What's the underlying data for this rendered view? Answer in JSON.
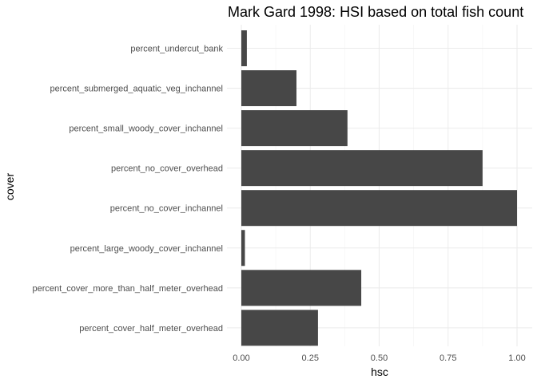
{
  "chart_data": {
    "type": "bar",
    "orientation": "horizontal",
    "title": "Mark Gard 1998: HSI based on total fish count",
    "xlabel": "hsc",
    "ylabel": "cover",
    "xlim": [
      0,
      1
    ],
    "x_ticks": [
      "0.00",
      "0.25",
      "0.50",
      "0.75",
      "1.00"
    ],
    "categories": [
      "percent_undercut_bank",
      "percent_submerged_aquatic_veg_inchannel",
      "percent_small_woody_cover_inchannel",
      "percent_no_cover_overhead",
      "percent_no_cover_inchannel",
      "percent_large_woody_cover_inchannel",
      "percent_cover_more_than_half_meter_overhead",
      "percent_cover_half_meter_overhead"
    ],
    "values": [
      0.02,
      0.2,
      0.385,
      0.875,
      1.0,
      0.013,
      0.435,
      0.278
    ],
    "bar_color": "#474747",
    "grid": true,
    "legend": "none"
  }
}
